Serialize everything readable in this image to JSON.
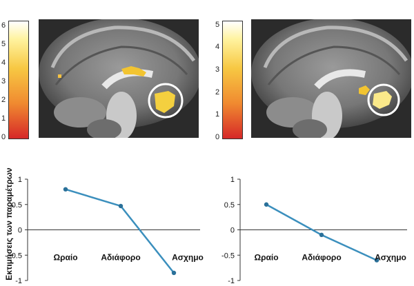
{
  "colorbars": [
    {
      "ticks": [
        "6",
        "5",
        "4",
        "3",
        "2",
        "1",
        "0"
      ],
      "max": 6.3
    },
    {
      "ticks": [
        "5",
        "4",
        "3",
        "2",
        "1",
        "0"
      ],
      "max": 5.2
    }
  ],
  "ylabel": "Εκτιμήσεις των παραμέτρων",
  "colors": {
    "line": "#3b8fbd",
    "marker": "#2a7099",
    "gradient_low": "#d62828",
    "gradient_mid": "#f7c843",
    "gradient_high": "#ffffff"
  },
  "chart_data": [
    {
      "type": "line",
      "categories": [
        "Ωραίο",
        "Αδιάφορο",
        "Ασχημο"
      ],
      "values": [
        0.8,
        0.47,
        -0.85
      ],
      "ylabel": "Εκτιμήσεις των παραμέτρων",
      "ylim": [
        -1,
        1
      ],
      "yticks": [
        "1",
        "0.5",
        "0",
        "-0.5",
        "-1"
      ],
      "grid": false
    },
    {
      "type": "line",
      "categories": [
        "Ωραίο",
        "Αδιάφορο",
        "Ασχημο"
      ],
      "values": [
        0.5,
        -0.1,
        -0.6
      ],
      "ylim": [
        -1,
        1
      ],
      "yticks": [
        "1",
        "0.5",
        "0",
        "-0.5",
        "-1"
      ],
      "grid": false
    }
  ]
}
